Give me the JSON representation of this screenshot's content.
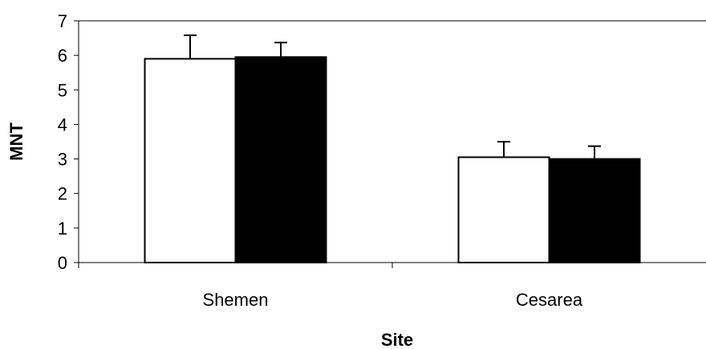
{
  "chart_data": {
    "type": "bar",
    "title": "",
    "xlabel": "Site",
    "ylabel": "MNT",
    "categories": [
      "Shemen",
      "Cesarea"
    ],
    "ylim": [
      0,
      7
    ],
    "yticks": [
      0,
      1,
      2,
      3,
      4,
      5,
      6,
      7
    ],
    "grid": false,
    "legend": "none",
    "series": [
      {
        "color": "#ffffff",
        "values": [
          5.9,
          3.05
        ],
        "errors": [
          0.68,
          0.45
        ]
      },
      {
        "color": "#000000",
        "values": [
          5.95,
          3.0
        ],
        "errors": [
          0.42,
          0.37
        ]
      }
    ]
  }
}
